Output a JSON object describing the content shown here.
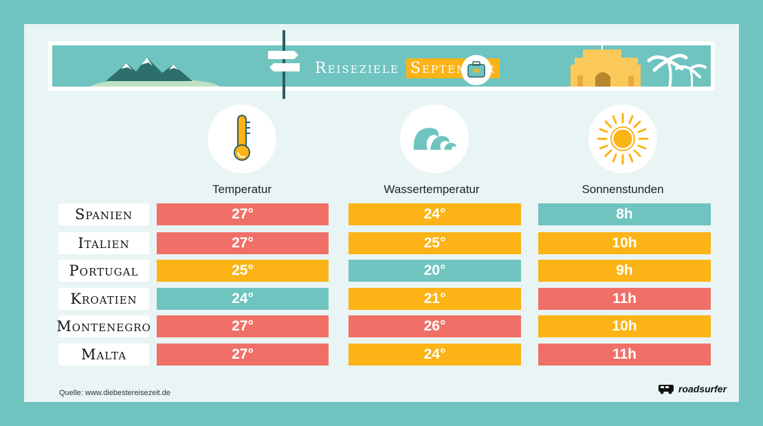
{
  "banner": {
    "title_part1": "Reiseziele",
    "title_part2": "September"
  },
  "columns": [
    {
      "header": "Temperatur",
      "icon": "thermometer-icon"
    },
    {
      "header": "Wassertemperatur",
      "icon": "wave-icon"
    },
    {
      "header": "Sonnenstunden",
      "icon": "sun-icon"
    }
  ],
  "rows": [
    {
      "country": "Spanien",
      "temp": "27°",
      "water": "24°",
      "sun": "8h"
    },
    {
      "country": "Italien",
      "temp": "27°",
      "water": "25°",
      "sun": "10h"
    },
    {
      "country": "Portugal",
      "temp": "25°",
      "water": "20°",
      "sun": "9h"
    },
    {
      "country": "Kroatien",
      "temp": "24°",
      "water": "21°",
      "sun": "11h"
    },
    {
      "country": "Montenegro",
      "temp": "27°",
      "water": "26°",
      "sun": "10h"
    },
    {
      "country": "Malta",
      "temp": "27°",
      "water": "24°",
      "sun": "11h"
    }
  ],
  "colors": {
    "red": "#f07068",
    "orange": "#fbb316",
    "teal": "#6fc4bf"
  },
  "cell_colors": [
    [
      "red",
      "orange",
      "teal"
    ],
    [
      "red",
      "orange",
      "orange"
    ],
    [
      "orange",
      "teal",
      "orange"
    ],
    [
      "teal",
      "orange",
      "red"
    ],
    [
      "red",
      "red",
      "orange"
    ],
    [
      "red",
      "orange",
      "red"
    ]
  ],
  "source": "Quelle: www.diebestereisezeit.de",
  "logo": {
    "text": "roadsurfer",
    "icon": "campervan-icon"
  }
}
